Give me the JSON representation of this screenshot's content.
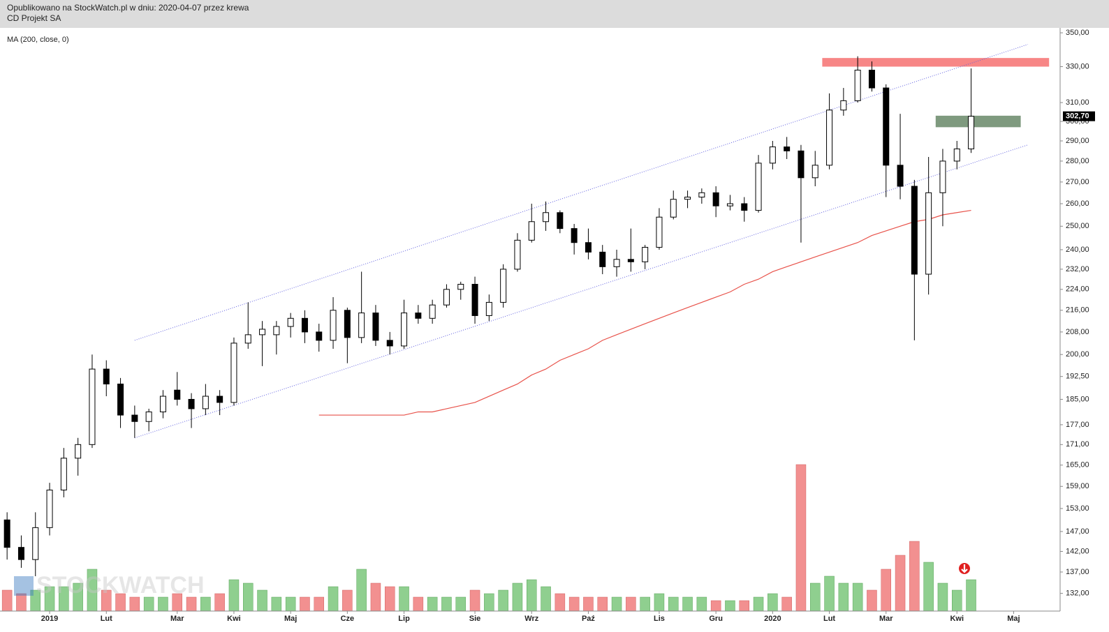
{
  "chart_data": {
    "type": "candlestick",
    "subtitle": "Opublikowano na StockWatch.pl w dniu: 2020-04-07 przez krewa",
    "title": "CD Projekt SA",
    "watermark": "STOCKWATCH",
    "log_scale": true,
    "ylim": [
      128,
      353
    ],
    "yticks": [
      {
        "value": 350,
        "label": "350,00"
      },
      {
        "value": 330,
        "label": "330,00"
      },
      {
        "value": 310,
        "label": "310,00"
      },
      {
        "value": 300,
        "label": "300,00"
      },
      {
        "value": 290,
        "label": "290,00"
      },
      {
        "value": 280,
        "label": "280,00"
      },
      {
        "value": 270,
        "label": "270,00"
      },
      {
        "value": 260,
        "label": "260,00"
      },
      {
        "value": 250,
        "label": "250,00"
      },
      {
        "value": 240,
        "label": "240,00"
      },
      {
        "value": 232,
        "label": "232,00"
      },
      {
        "value": 224,
        "label": "224,00"
      },
      {
        "value": 216,
        "label": "216,00"
      },
      {
        "value": 208,
        "label": "208,00"
      },
      {
        "value": 200,
        "label": "200,00"
      },
      {
        "value": 192.5,
        "label": "192,50"
      },
      {
        "value": 185,
        "label": "185,00"
      },
      {
        "value": 177,
        "label": "177,00"
      },
      {
        "value": 171,
        "label": "171,00"
      },
      {
        "value": 165,
        "label": "165,00"
      },
      {
        "value": 159,
        "label": "159,00"
      },
      {
        "value": 153,
        "label": "153,00"
      },
      {
        "value": 147,
        "label": "147,00"
      },
      {
        "value": 142,
        "label": "142,00"
      },
      {
        "value": 137,
        "label": "137,00"
      },
      {
        "value": 132,
        "label": "132,00"
      }
    ],
    "last_price": {
      "value": 302.7,
      "label": "302,70"
    },
    "categories": [
      null,
      null,
      null,
      "2019",
      null,
      null,
      null,
      "Lut",
      null,
      null,
      null,
      null,
      "Mar",
      null,
      null,
      null,
      "Kwi",
      null,
      null,
      null,
      "Maj",
      null,
      null,
      null,
      "Cze",
      null,
      null,
      null,
      "Lip",
      null,
      null,
      null,
      null,
      "Sie",
      null,
      null,
      null,
      "Wrz",
      null,
      null,
      null,
      "Paź",
      null,
      null,
      null,
      null,
      "Lis",
      null,
      null,
      null,
      "Gru",
      null,
      null,
      null,
      "2020",
      null,
      null,
      null,
      "Lut",
      null,
      null,
      null,
      "Mar",
      null,
      null,
      null,
      null,
      "Kwi",
      null,
      null,
      null,
      "Maj",
      null,
      null,
      null
    ],
    "up_color": "#ffffff",
    "down_color": "#000000",
    "open": [
      150,
      143,
      140,
      148,
      158,
      167,
      171,
      195,
      190,
      180,
      178,
      181,
      188,
      185,
      182,
      186,
      184,
      204,
      207,
      207,
      210,
      213,
      208,
      205,
      216,
      206,
      215,
      205,
      203,
      215,
      213,
      218,
      224,
      226,
      214,
      219,
      232,
      244,
      252,
      256,
      249,
      243,
      239,
      233,
      236,
      235,
      241,
      254,
      262,
      263,
      265,
      259,
      260,
      257,
      279,
      287,
      285,
      272,
      278,
      306,
      311,
      328,
      318,
      278,
      268,
      230,
      265,
      280,
      286,
      null,
      null,
      null,
      null,
      null,
      null
    ],
    "high": [
      152,
      146,
      152,
      160,
      170,
      173,
      200,
      198,
      192,
      183,
      182,
      188,
      194,
      187,
      190,
      188,
      206,
      219,
      212,
      212,
      215,
      216,
      211,
      221,
      217,
      231,
      218,
      208,
      220,
      218,
      220,
      226,
      227,
      229,
      222,
      234,
      247,
      260,
      261,
      257,
      251,
      249,
      242,
      240,
      249,
      242,
      258,
      266,
      266,
      267,
      268,
      264,
      263,
      283,
      290,
      292,
      288,
      285,
      315,
      318,
      336,
      333,
      320,
      304,
      271,
      282,
      286,
      290,
      329,
      null,
      null,
      null,
      null,
      null,
      null
    ],
    "low": [
      140,
      138,
      136,
      146,
      156,
      162,
      170,
      186,
      176,
      173,
      175,
      179,
      183,
      176,
      180,
      180,
      183,
      202,
      196,
      200,
      206,
      204,
      201,
      202,
      197,
      204,
      203,
      200,
      202,
      211,
      211,
      217,
      220,
      211,
      212,
      217,
      231,
      243,
      248,
      247,
      238,
      236,
      230,
      229,
      231,
      232,
      240,
      253,
      258,
      260,
      254,
      257,
      252,
      256,
      276,
      281,
      243,
      268,
      276,
      303,
      310,
      316,
      263,
      262,
      205,
      222,
      250,
      276,
      284,
      null,
      null,
      null,
      null,
      null,
      null
    ],
    "close": [
      143,
      140,
      148,
      158,
      167,
      171,
      195,
      190,
      180,
      178,
      181,
      186,
      185,
      182,
      186,
      184,
      204,
      207,
      209,
      210,
      213,
      208,
      205,
      216,
      206,
      215,
      205,
      203,
      215,
      213,
      218,
      224,
      226,
      214,
      219,
      232,
      244,
      252,
      256,
      249,
      243,
      239,
      233,
      236,
      235,
      241,
      254,
      262,
      263,
      265,
      259,
      260,
      257,
      279,
      287,
      285,
      272,
      278,
      306,
      311,
      328,
      318,
      278,
      268,
      230,
      265,
      280,
      286,
      302.7,
      null,
      null,
      null,
      null,
      null,
      null
    ],
    "volume": [
      30,
      25,
      30,
      35,
      35,
      40,
      60,
      30,
      25,
      20,
      20,
      20,
      25,
      20,
      20,
      25,
      45,
      40,
      30,
      20,
      20,
      20,
      20,
      35,
      30,
      60,
      40,
      35,
      35,
      20,
      20,
      20,
      20,
      30,
      25,
      30,
      40,
      45,
      35,
      25,
      20,
      20,
      20,
      20,
      20,
      20,
      25,
      20,
      20,
      20,
      15,
      15,
      15,
      20,
      25,
      20,
      210,
      40,
      50,
      40,
      40,
      30,
      60,
      80,
      100,
      70,
      40,
      30,
      45,
      null,
      null,
      null,
      null,
      null,
      null
    ],
    "volume_up_color": "#8fcf8f",
    "volume_down_color": "#f29090",
    "series": [
      {
        "name": "MA (200, close, 0)",
        "color": "#e8524a",
        "values": [
          null,
          null,
          null,
          null,
          null,
          null,
          null,
          null,
          null,
          null,
          null,
          null,
          null,
          null,
          null,
          null,
          null,
          null,
          null,
          null,
          null,
          null,
          180,
          180,
          180,
          180,
          180,
          180,
          180,
          181,
          181,
          182,
          183,
          184,
          186,
          188,
          190,
          193,
          195,
          198,
          200,
          202,
          205,
          207,
          209,
          211,
          213,
          215,
          217,
          219,
          221,
          223,
          226,
          228,
          231,
          233,
          235,
          237,
          239,
          241,
          243,
          246,
          248,
          250,
          252,
          253,
          255,
          256,
          257,
          null,
          null,
          null,
          null,
          null,
          null
        ]
      }
    ],
    "channels": [
      {
        "start": 9,
        "end": 72,
        "values": [
          205,
          343
        ],
        "color": "#6060e0"
      },
      {
        "start": 9,
        "end": 72,
        "values": [
          173,
          288
        ],
        "color": "#6060e0"
      }
    ],
    "zones": [
      {
        "start": 58,
        "end": 73,
        "range": [
          330,
          335
        ],
        "color": "#f78686"
      },
      {
        "start": 66,
        "end": 71,
        "range": [
          297,
          303
        ],
        "color": "#7f9a7f"
      }
    ]
  }
}
